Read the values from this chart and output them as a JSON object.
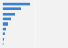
{
  "values": [
    42,
    28,
    19,
    13,
    8,
    5,
    3,
    2,
    1
  ],
  "bar_color": "#3b82d0",
  "background_color": "#f2f2f2",
  "bar_height": 0.55,
  "xlim": [
    0,
    100
  ],
  "n_bars": 9
}
